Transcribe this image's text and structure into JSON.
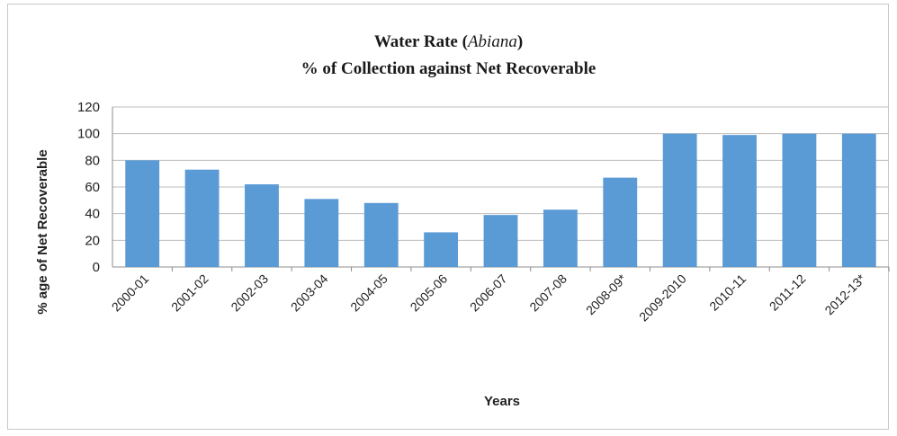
{
  "chart_data": {
    "type": "bar",
    "title_prefix": "Water Rate (",
    "title_italic": "Abiana",
    "title_suffix": ")",
    "subtitle": "% of Collection against Net Recoverable",
    "xlabel": "Years",
    "ylabel": "% age of Net Recoverable",
    "ylim": [
      0,
      120
    ],
    "yticks": [
      0,
      20,
      40,
      60,
      80,
      100,
      120
    ],
    "grid": true,
    "bar_color": "#5b9bd5",
    "categories": [
      "2000-01",
      "2001-02",
      "2002-03",
      "2003-04",
      "2004-05",
      "2005-06",
      "2006-07",
      "2007-08",
      "2008-09*",
      "2009-2010",
      "2010-11",
      "2011-12",
      "2012-13*"
    ],
    "values": [
      80,
      73,
      62,
      51,
      48,
      26,
      39,
      43,
      67,
      100,
      99,
      100,
      100
    ]
  }
}
